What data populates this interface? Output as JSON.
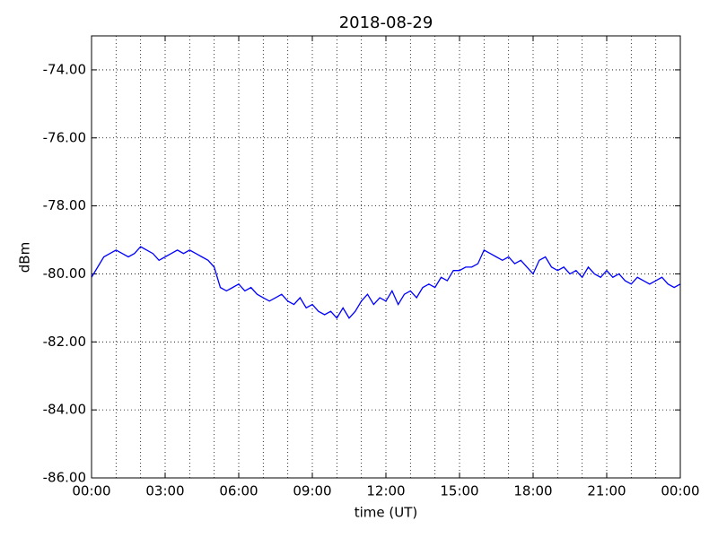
{
  "chart_data": {
    "type": "line",
    "title": "2018-08-29",
    "xlabel": "time (UT)",
    "ylabel": "dBm",
    "x": [
      0,
      0.25,
      0.5,
      0.75,
      1,
      1.25,
      1.5,
      1.75,
      2,
      2.25,
      2.5,
      2.75,
      3,
      3.25,
      3.5,
      3.75,
      4,
      4.25,
      4.5,
      4.75,
      5,
      5.25,
      5.5,
      5.75,
      6,
      6.25,
      6.5,
      6.75,
      7,
      7.25,
      7.5,
      7.75,
      8,
      8.25,
      8.5,
      8.75,
      9,
      9.25,
      9.5,
      9.75,
      10,
      10.25,
      10.5,
      10.75,
      11,
      11.25,
      11.5,
      11.75,
      12,
      12.25,
      12.5,
      12.75,
      13,
      13.25,
      13.5,
      13.75,
      14,
      14.25,
      14.5,
      14.75,
      15,
      15.25,
      15.5,
      15.75,
      16,
      16.25,
      16.5,
      16.75,
      17,
      17.25,
      17.5,
      17.75,
      18,
      18.25,
      18.5,
      18.75,
      19,
      19.25,
      19.5,
      19.75,
      20,
      20.25,
      20.5,
      20.75,
      21,
      21.25,
      21.5,
      21.75,
      22,
      22.25,
      22.5,
      22.75,
      23,
      23.25,
      23.5,
      23.75,
      24
    ],
    "series": [
      {
        "name": "dBm",
        "color": "#0000ff",
        "values": [
          -80.1,
          -79.8,
          -79.5,
          -79.4,
          -79.3,
          -79.4,
          -79.5,
          -79.4,
          -79.2,
          -79.3,
          -79.4,
          -79.6,
          -79.5,
          -79.4,
          -79.3,
          -79.4,
          -79.3,
          -79.4,
          -79.5,
          -79.6,
          -79.8,
          -80.4,
          -80.5,
          -80.4,
          -80.3,
          -80.5,
          -80.4,
          -80.6,
          -80.7,
          -80.8,
          -80.7,
          -80.6,
          -80.8,
          -80.9,
          -80.7,
          -81.0,
          -80.9,
          -81.1,
          -81.2,
          -81.1,
          -81.3,
          -81.0,
          -81.3,
          -81.1,
          -80.8,
          -80.6,
          -80.9,
          -80.7,
          -80.8,
          -80.5,
          -80.9,
          -80.6,
          -80.5,
          -80.7,
          -80.4,
          -80.3,
          -80.4,
          -80.1,
          -80.2,
          -79.9,
          -79.9,
          -79.8,
          -79.8,
          -79.7,
          -79.3,
          -79.4,
          -79.5,
          -79.6,
          -79.5,
          -79.7,
          -79.6,
          -79.8,
          -80.0,
          -79.6,
          -79.5,
          -79.8,
          -79.9,
          -79.8,
          -80.0,
          -79.9,
          -80.1,
          -79.8,
          -80.0,
          -80.1,
          -79.9,
          -80.1,
          -80.0,
          -80.2,
          -80.3,
          -80.1,
          -80.2,
          -80.3,
          -80.2,
          -80.1,
          -80.3,
          -80.4,
          -80.3
        ]
      }
    ],
    "xlim": [
      0,
      24
    ],
    "xticks": [
      {
        "value": 0,
        "label": "00:00"
      },
      {
        "value": 3,
        "label": "03:00"
      },
      {
        "value": 6,
        "label": "06:00"
      },
      {
        "value": 9,
        "label": "09:00"
      },
      {
        "value": 12,
        "label": "12:00"
      },
      {
        "value": 15,
        "label": "15:00"
      },
      {
        "value": 18,
        "label": "18:00"
      },
      {
        "value": 21,
        "label": "21:00"
      },
      {
        "value": 24,
        "label": "00:00"
      }
    ],
    "xminorticks": [
      0,
      1,
      2,
      3,
      4,
      5,
      6,
      7,
      8,
      9,
      10,
      11,
      12,
      13,
      14,
      15,
      16,
      17,
      18,
      19,
      20,
      21,
      22,
      23,
      24
    ],
    "ylim": [
      -86,
      -73
    ],
    "yticks": [
      {
        "value": -86,
        "label": "-86.00"
      },
      {
        "value": -84,
        "label": "-84.00"
      },
      {
        "value": -82,
        "label": "-82.00"
      },
      {
        "value": -80,
        "label": "-80.00"
      },
      {
        "value": -78,
        "label": "-78.00"
      },
      {
        "value": -76,
        "label": "-76.00"
      },
      {
        "value": -74,
        "label": "-74.00"
      }
    ],
    "grid": true
  }
}
